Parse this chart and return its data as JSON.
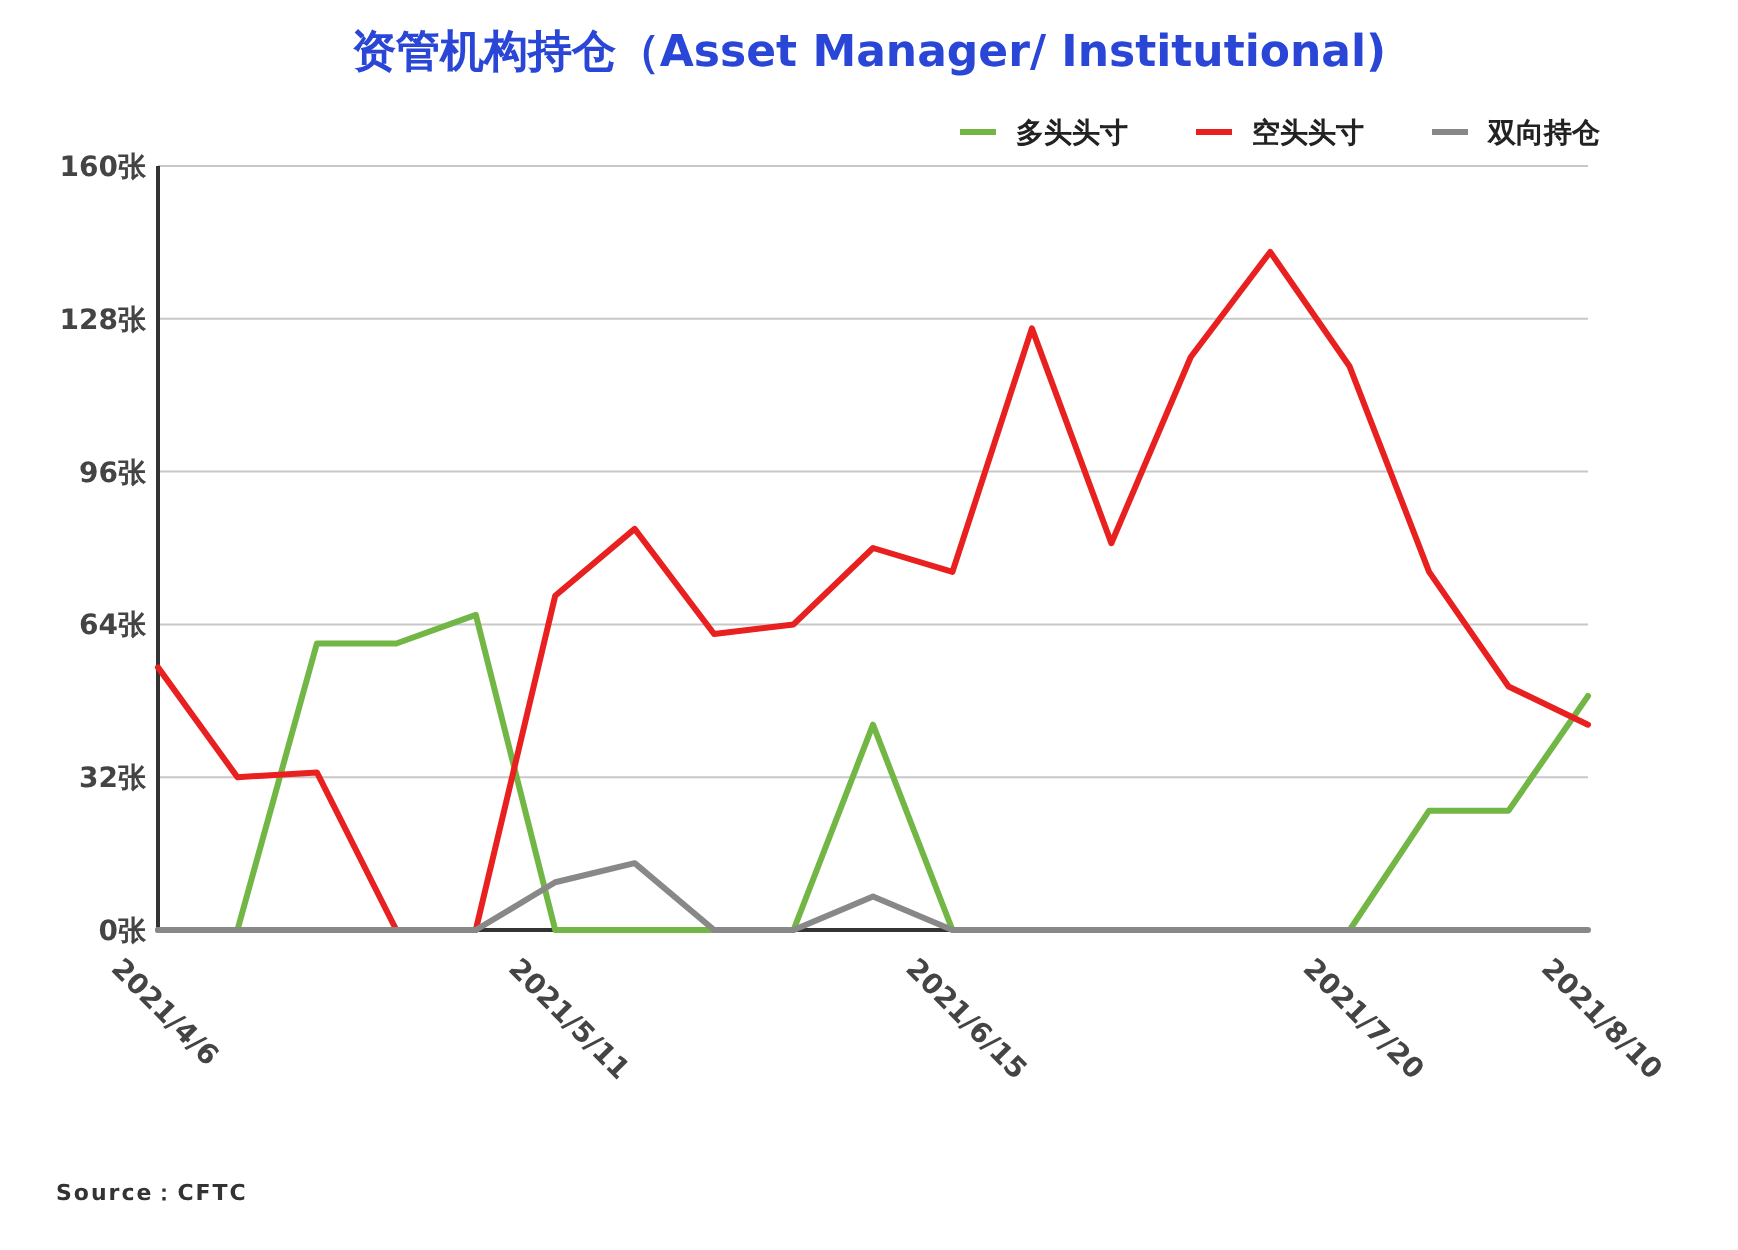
{
  "chart_data": {
    "type": "line",
    "title": "资管机构持仓（Asset Manager/ Institutional)",
    "categories": [
      "2021/4/6",
      null,
      null,
      null,
      null,
      "2021/5/11",
      null,
      null,
      null,
      null,
      "2021/6/15",
      null,
      null,
      null,
      null,
      "2021/7/20",
      null,
      null,
      "2021/8/10"
    ],
    "series": [
      {
        "name": "多头头寸",
        "color": "#72b745",
        "values": [
          0,
          0,
          60,
          60,
          66,
          0,
          0,
          0,
          0,
          43,
          0,
          0,
          0,
          0,
          0,
          0,
          25,
          25,
          49
        ]
      },
      {
        "name": "空头头寸",
        "color": "#e8201f",
        "values": [
          55,
          32,
          33,
          0,
          0,
          70,
          84,
          62,
          64,
          80,
          75,
          126,
          81,
          120,
          142,
          118,
          75,
          51,
          43
        ]
      },
      {
        "name": "双向持仓",
        "color": "#888888",
        "values": [
          0,
          0,
          0,
          0,
          0,
          10,
          14,
          0,
          0,
          7,
          0,
          0,
          0,
          0,
          0,
          0,
          0,
          0,
          0
        ]
      }
    ],
    "ylim": [
      0,
      160
    ],
    "yticks": [
      {
        "value": 0,
        "label": "0张"
      },
      {
        "value": 32,
        "label": "32张"
      },
      {
        "value": 64,
        "label": "64张"
      },
      {
        "value": 96,
        "label": "96张"
      },
      {
        "value": 128,
        "label": "128张"
      },
      {
        "value": 160,
        "label": "160张"
      }
    ],
    "grid": "y",
    "legend": "top right",
    "marker": "none",
    "line_style": "solid",
    "annotations": [
      "Source：CFTC"
    ]
  }
}
